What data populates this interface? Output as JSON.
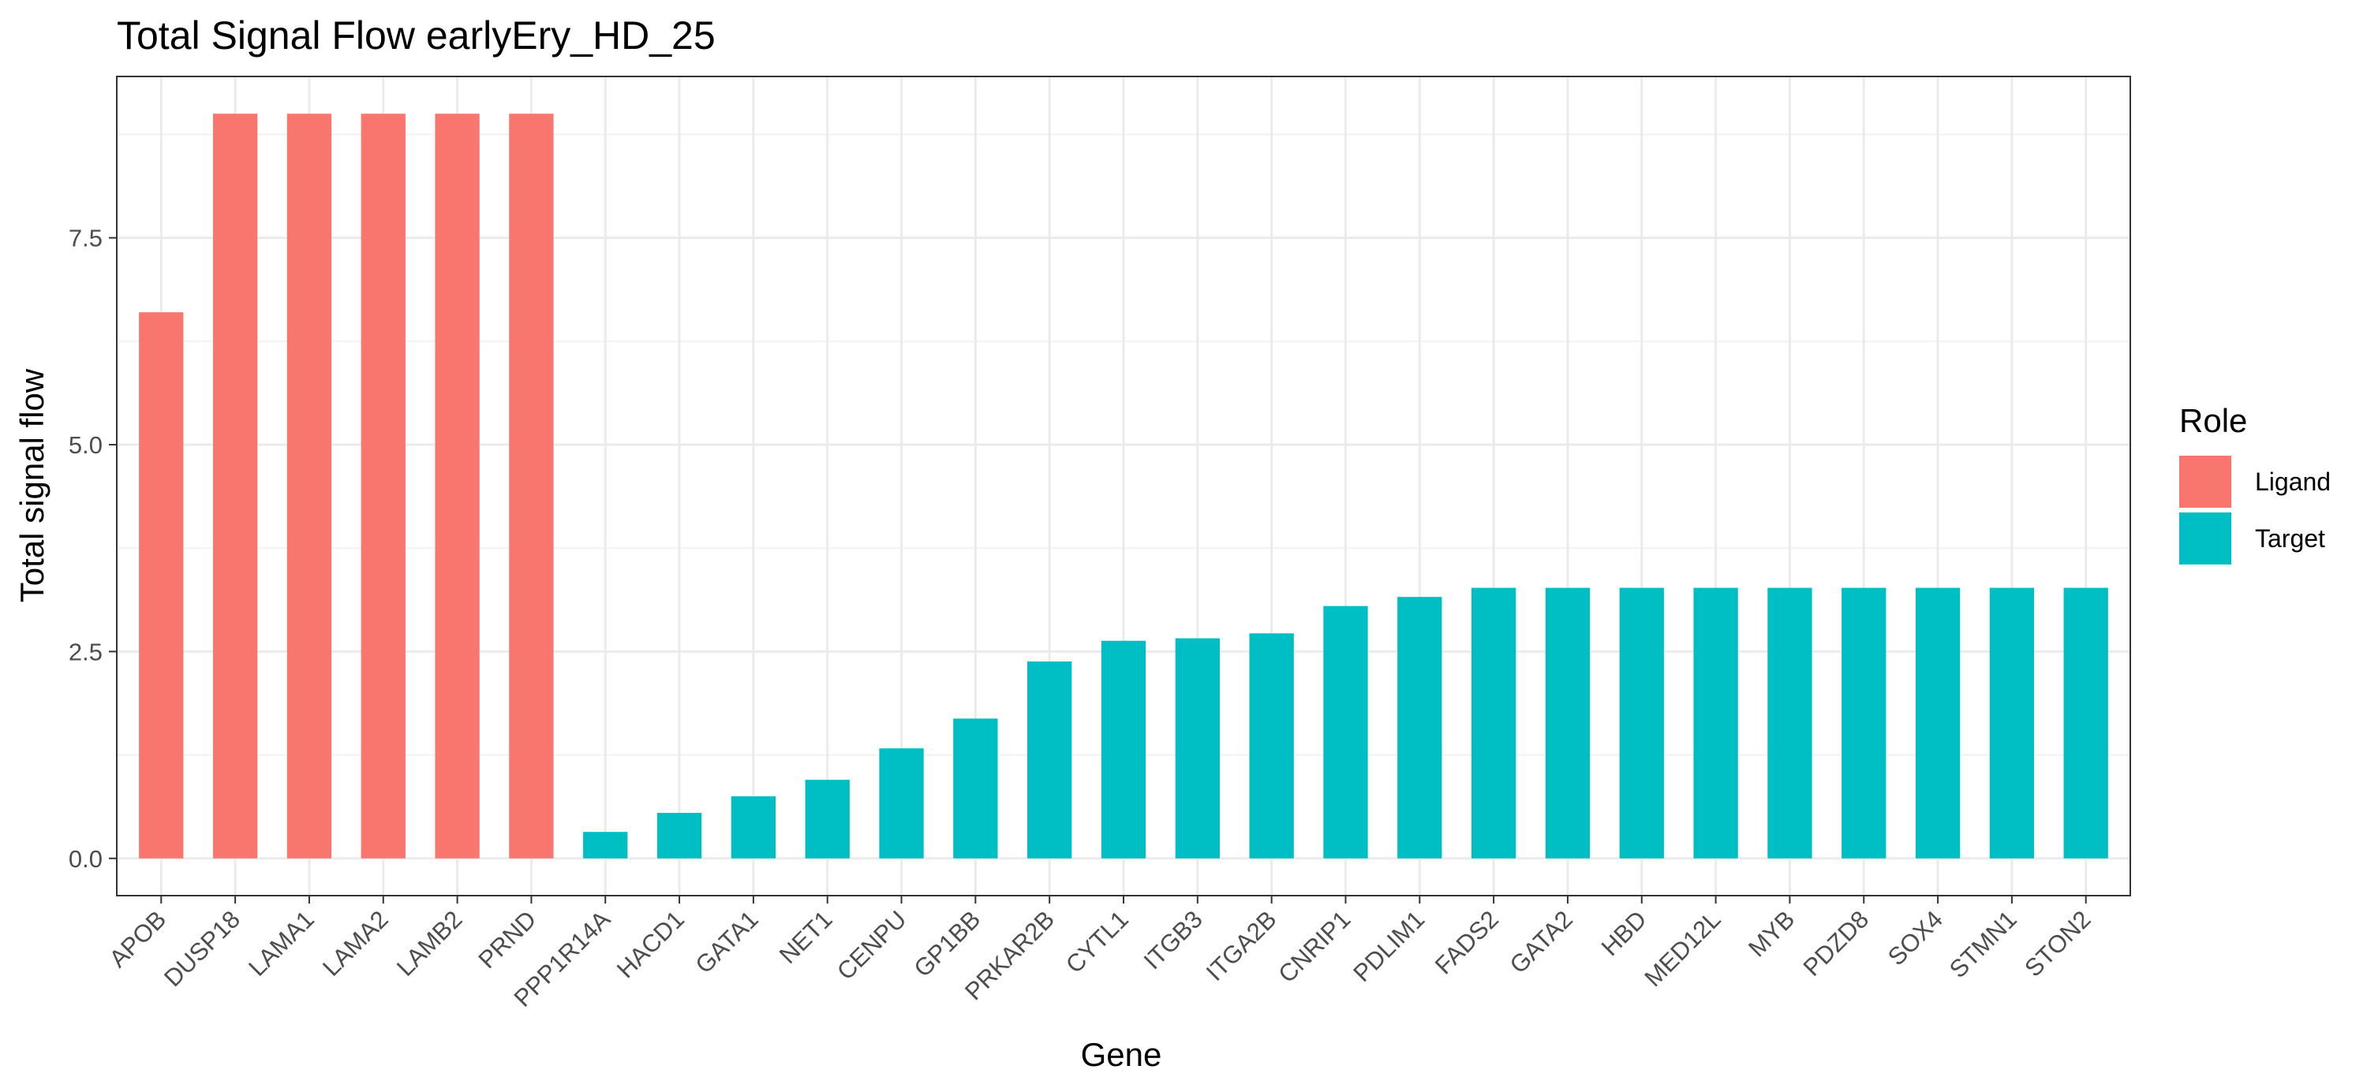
{
  "chart_data": {
    "type": "bar",
    "title": "Total Signal Flow earlyEry_HD_25",
    "xlabel": "Gene",
    "ylabel": "Total signal flow",
    "ylim": [
      -0.45,
      9.45
    ],
    "yticks": [
      0.0,
      2.5,
      5.0,
      7.5
    ],
    "ytick_labels": [
      "0.0",
      "2.5",
      "5.0",
      "7.5"
    ],
    "grid": true,
    "legend_position": "right",
    "legend": {
      "title": "Role",
      "entries": [
        {
          "label": "Ligand",
          "color": "#F8766D"
        },
        {
          "label": "Target",
          "color": "#00BFC4"
        }
      ]
    },
    "categories": [
      "APOB",
      "DUSP18",
      "LAMA1",
      "LAMA2",
      "LAMB2",
      "PRND",
      "PPP1R14A",
      "HACD1",
      "GATA1",
      "NET1",
      "CENPU",
      "GP1BB",
      "PRKAR2B",
      "CYTL1",
      "ITGB3",
      "ITGA2B",
      "CNRIP1",
      "PDLIM1",
      "FADS2",
      "GATA2",
      "HBD",
      "MED12L",
      "MYB",
      "PDZD8",
      "SOX4",
      "STMN1",
      "STON2"
    ],
    "values": [
      6.6,
      9.0,
      9.0,
      9.0,
      9.0,
      9.0,
      0.32,
      0.55,
      0.75,
      0.95,
      1.33,
      1.69,
      2.38,
      2.63,
      2.66,
      2.72,
      3.05,
      3.16,
      3.27,
      3.27,
      3.27,
      3.27,
      3.27,
      3.27,
      3.27,
      3.27,
      3.27
    ],
    "roles": [
      "Ligand",
      "Ligand",
      "Ligand",
      "Ligand",
      "Ligand",
      "Ligand",
      "Target",
      "Target",
      "Target",
      "Target",
      "Target",
      "Target",
      "Target",
      "Target",
      "Target",
      "Target",
      "Target",
      "Target",
      "Target",
      "Target",
      "Target",
      "Target",
      "Target",
      "Target",
      "Target",
      "Target",
      "Target"
    ]
  }
}
